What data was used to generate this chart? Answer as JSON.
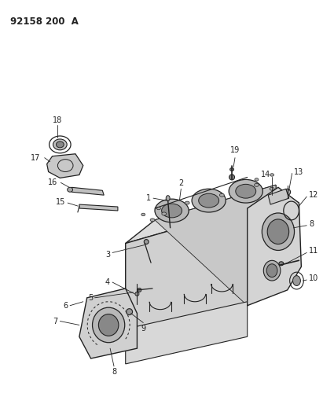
{
  "title": "92158 200  A",
  "background_color": "#ffffff",
  "fig_width": 4.11,
  "fig_height": 5.33,
  "dpi": 100,
  "line_color": "#222222",
  "label_fontsize": 7.0,
  "title_fontsize": 8.5
}
